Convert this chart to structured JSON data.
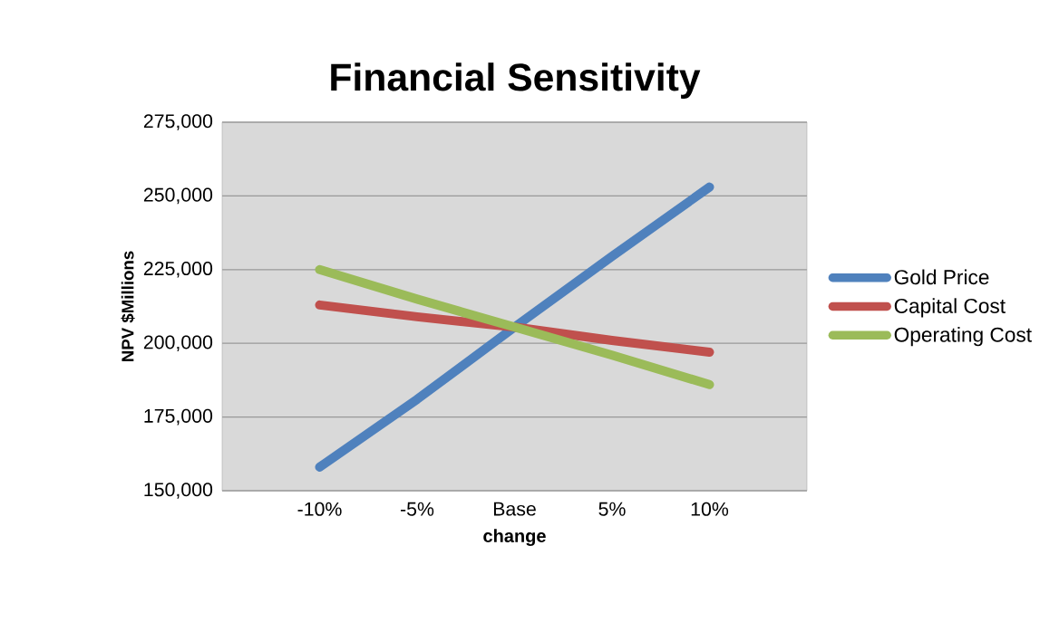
{
  "chart_data": {
    "type": "line",
    "title": "Financial Sensitivity",
    "xlabel": "change",
    "ylabel": "NPV $Millions",
    "categories": [
      null,
      "-10%",
      "-5%",
      "Base",
      "5%",
      "10%",
      null
    ],
    "series": [
      {
        "name": "Gold Price",
        "color": "#4f81bd",
        "values": [
          null,
          158000,
          181000,
          205500,
          229500,
          253000,
          null
        ]
      },
      {
        "name": "Capital Cost",
        "color": "#c0504d",
        "values": [
          null,
          213000,
          209000,
          205500,
          201000,
          197000,
          null
        ]
      },
      {
        "name": "Operating Cost",
        "color": "#9bbb59",
        "values": [
          null,
          225000,
          215000,
          205500,
          196000,
          186000,
          null
        ]
      }
    ],
    "ylim": [
      150000,
      275000
    ],
    "yticks": [
      {
        "value": 150000,
        "label": "150,000"
      },
      {
        "value": 175000,
        "label": "175,000"
      },
      {
        "value": 200000,
        "label": "200,000"
      },
      {
        "value": 225000,
        "label": "225,000"
      },
      {
        "value": 250000,
        "label": "250,000"
      },
      {
        "value": 275000,
        "label": "275,000"
      }
    ],
    "grid": "y",
    "legend": "right",
    "marker": "none",
    "line_style": "solid"
  }
}
